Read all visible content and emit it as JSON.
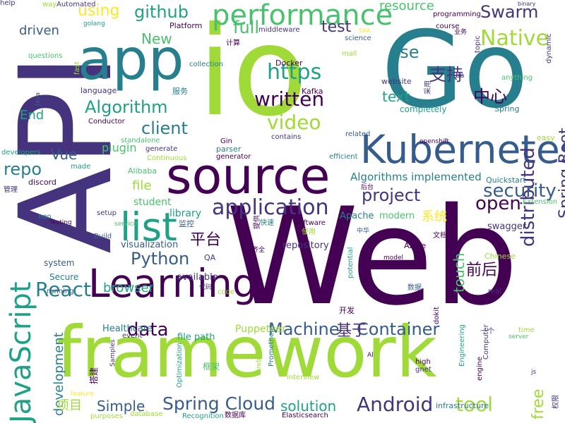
{
  "palette": {
    "dark_purple": "#440154",
    "indigo": "#46337e",
    "blue": "#365c8d",
    "teal_blue": "#277f8e",
    "teal": "#1fa187",
    "green": "#4ac16d",
    "lime": "#a0da39",
    "yellow": "#fde725"
  },
  "words": [
    {
      "text": "Web",
      "color": "#440154"
    },
    {
      "text": "framework",
      "color": "#a0da39"
    },
    {
      "text": "API",
      "color": "#46337e"
    },
    {
      "text": "Go",
      "color": "#277f8e"
    },
    {
      "text": "io",
      "color": "#a0da39"
    },
    {
      "text": "source",
      "color": "#440154"
    },
    {
      "text": "app",
      "color": "#277f8e"
    },
    {
      "text": "Kubernetes",
      "color": "#365c8d"
    },
    {
      "text": "Learning",
      "color": "#440154"
    },
    {
      "text": "JavaScript",
      "color": "#1fa187"
    },
    {
      "text": "performance",
      "color": "#4ac16d"
    },
    {
      "text": "list",
      "color": "#1fa187"
    },
    {
      "text": "application",
      "color": "#46337e"
    },
    {
      "text": "Spring Cloud",
      "color": "#365c8d"
    },
    {
      "text": "Android",
      "color": "#46337e"
    },
    {
      "text": "Native",
      "color": "#a0da39"
    },
    {
      "text": "Swarm",
      "color": "#46337e"
    },
    {
      "text": "https",
      "color": "#1fa187"
    },
    {
      "text": "Algorithm",
      "color": "#1fa187"
    },
    {
      "text": "Machine",
      "color": "#365c8d"
    },
    {
      "text": "github",
      "color": "#1fa187"
    },
    {
      "text": "Python",
      "color": "#365c8d"
    },
    {
      "text": "React",
      "color": "#277f8e"
    },
    {
      "text": "written",
      "color": "#440154"
    },
    {
      "text": "video",
      "color": "#a0da39"
    },
    {
      "text": "distributed",
      "color": "#46337e"
    },
    {
      "text": "Spring Boot",
      "color": "#46337e"
    },
    {
      "text": "project",
      "color": "#46337e"
    },
    {
      "text": "security",
      "color": "#365c8d"
    },
    {
      "text": "data",
      "color": "#440154"
    },
    {
      "text": "Container",
      "color": "#365c8d"
    },
    {
      "text": "tool",
      "color": "#a0da39"
    },
    {
      "text": "open",
      "color": "#440154"
    },
    {
      "text": "client",
      "color": "#277f8e"
    },
    {
      "text": "repo",
      "color": "#277f8e"
    },
    {
      "text": "using",
      "color": "#fde725"
    },
    {
      "text": "full",
      "color": "#4ac16d"
    },
    {
      "text": "test",
      "color": "#46337e"
    },
    {
      "text": "use",
      "color": "#277f8e"
    },
    {
      "text": "支持",
      "color": "#46337e"
    },
    {
      "text": "中心",
      "color": "#440154"
    },
    {
      "text": "text",
      "color": "#1fa187"
    },
    {
      "text": "Simple",
      "color": "#365c8d"
    },
    {
      "text": "solution",
      "color": "#1fa187"
    },
    {
      "text": "free",
      "color": "#a0da39"
    },
    {
      "text": "基于",
      "color": "#46337e"
    },
    {
      "text": "前后",
      "color": "#440154"
    },
    {
      "text": "平台",
      "color": "#440154"
    },
    {
      "text": "touch",
      "color": "#4ac16d"
    },
    {
      "text": "development",
      "color": "#277f8e"
    },
    {
      "text": "项目",
      "color": "#a0da39"
    },
    {
      "text": "resource",
      "color": "#4ac16d"
    },
    {
      "text": "driven",
      "color": "#365c8d"
    },
    {
      "text": "New",
      "color": "#4ac16d"
    },
    {
      "text": "End",
      "color": "#1fa187"
    },
    {
      "text": "Vue",
      "color": "#365c8d"
    },
    {
      "text": "file",
      "color": "#a0da39"
    },
    {
      "text": "browser",
      "color": "#1fa187"
    },
    {
      "text": "系统",
      "color": "#fde725"
    },
    {
      "text": "Algorithms implemented",
      "color": "#277f8e"
    },
    {
      "text": "plugin",
      "color": "#4ac16d"
    },
    {
      "text": "library",
      "color": "#1fa187"
    },
    {
      "text": "repository",
      "color": "#46337e"
    },
    {
      "text": "available",
      "color": "#46337e"
    },
    {
      "text": "swagger",
      "color": "#46337e"
    },
    {
      "text": "Apache",
      "color": "#277f8e"
    },
    {
      "text": "modern",
      "color": "#4ac16d"
    },
    {
      "text": "student",
      "color": "#4ac16d"
    },
    {
      "text": "visualization",
      "color": "#365c8d"
    },
    {
      "text": "Secure",
      "color": "#277f8e"
    },
    {
      "text": "system",
      "color": "#365c8d"
    },
    {
      "text": "Puppeteer",
      "color": "#a0da39"
    },
    {
      "text": "file path",
      "color": "#1fa187"
    },
    {
      "text": "Healthcare",
      "color": "#277f8e"
    },
    {
      "text": "Quickstart",
      "color": "#277f8e"
    },
    {
      "text": "Platform",
      "color": "#440154"
    },
    {
      "text": "golang",
      "color": "#1fa187"
    },
    {
      "text": "Automated",
      "color": "#46337e"
    },
    {
      "text": "programming",
      "color": "#440154"
    },
    {
      "text": "binary",
      "color": "#46337e"
    },
    {
      "text": "course",
      "color": "#440154"
    },
    {
      "text": "website",
      "color": "#46337e"
    },
    {
      "text": "anything",
      "color": "#4ac16d"
    },
    {
      "text": "Spring",
      "color": "#277f8e"
    },
    {
      "text": "采用",
      "color": "#46337e"
    },
    {
      "text": "completely",
      "color": "#1fa187"
    },
    {
      "text": "Kafka",
      "color": "#440154"
    },
    {
      "text": "Docker",
      "color": "#440154"
    },
    {
      "text": "collection",
      "color": "#277f8e"
    },
    {
      "text": "middleware",
      "color": "#46337e"
    },
    {
      "text": "science",
      "color": "#365c8d"
    },
    {
      "text": "mall",
      "color": "#a0da39"
    },
    {
      "text": "SAA",
      "color": "#fde725"
    },
    {
      "text": "questions",
      "color": "#4ac16d"
    },
    {
      "text": "fast",
      "color": "#a0da39"
    },
    {
      "text": "language",
      "color": "#46337e"
    },
    {
      "text": "服务",
      "color": "#277f8e"
    },
    {
      "text": "Conductor",
      "color": "#440154"
    },
    {
      "text": "standalone",
      "color": "#4ac16d"
    },
    {
      "text": "developers",
      "color": "#1fa187"
    },
    {
      "text": "made",
      "color": "#1fa187"
    },
    {
      "text": "discord",
      "color": "#440154"
    },
    {
      "text": "管理",
      "color": "#46337e"
    },
    {
      "text": "Alibaba",
      "color": "#4ac16d"
    },
    {
      "text": "generate",
      "color": "#46337e"
    },
    {
      "text": "Continuous",
      "color": "#a0da39"
    },
    {
      "text": "parser",
      "color": "#277f8e"
    },
    {
      "text": "generator",
      "color": "#440154"
    },
    {
      "text": "Gin",
      "color": "#440154"
    },
    {
      "text": "contains",
      "color": "#46337e"
    },
    {
      "text": "efficient",
      "color": "#277f8e"
    },
    {
      "text": "related",
      "color": "#365c8d"
    },
    {
      "text": "openshift",
      "color": "#440154"
    },
    {
      "text": "easy",
      "color": "#a0da39"
    },
    {
      "text": "dynamic",
      "color": "#46337e"
    },
    {
      "text": "topic",
      "color": "#46337e"
    },
    {
      "text": "业务",
      "color": "#440154"
    },
    {
      "text": "ba",
      "color": "#46337e"
    },
    {
      "text": "Java",
      "color": "#365c8d"
    },
    {
      "text": "Testing",
      "color": "#440154"
    },
    {
      "text": "setup",
      "color": "#46337e"
    },
    {
      "text": "non",
      "color": "#277f8e"
    },
    {
      "text": "service",
      "color": "#4ac16d"
    },
    {
      "text": "Build",
      "color": "#365c8d"
    },
    {
      "text": "监控",
      "color": "#365c8d"
    },
    {
      "text": "快速",
      "color": "#277f8e"
    },
    {
      "text": "使用",
      "color": "#a0da39"
    },
    {
      "text": "中华",
      "color": "#365c8d"
    },
    {
      "text": "software",
      "color": "#440154"
    },
    {
      "text": "文档",
      "color": "#440154"
    },
    {
      "text": "QA",
      "color": "#46337e"
    },
    {
      "text": "齐全",
      "color": "#440154"
    },
    {
      "text": "potential",
      "color": "#1fa187"
    },
    {
      "text": "model",
      "color": "#440154"
    },
    {
      "text": "Azure",
      "color": "#440154"
    },
    {
      "text": "Chinese",
      "color": "#a0da39"
    },
    {
      "text": "real",
      "color": "#46337e"
    },
    {
      "text": "数据",
      "color": "#365c8d"
    },
    {
      "text": "代码",
      "color": "#46337e"
    },
    {
      "text": "code",
      "color": "#a0da39"
    },
    {
      "text": "running",
      "color": "#365c8d"
    },
    {
      "text": "开发",
      "color": "#440154"
    },
    {
      "text": "dokit",
      "color": "#440154"
    },
    {
      "text": "event",
      "color": "#46337e"
    },
    {
      "text": "time",
      "color": "#a0da39"
    },
    {
      "text": "server",
      "color": "#4ac16d"
    },
    {
      "text": "一个",
      "color": "#46337e"
    },
    {
      "text": "high",
      "color": "#440154"
    },
    {
      "text": "gnet",
      "color": "#46337e"
    },
    {
      "text": "engine",
      "color": "#440154"
    },
    {
      "text": "Computer",
      "color": "#46337e"
    },
    {
      "text": "Engineering",
      "color": "#1fa187"
    },
    {
      "text": "js",
      "color": "#46337e"
    },
    {
      "text": "interview",
      "color": "#a0da39"
    },
    {
      "text": "Prometheus",
      "color": "#277f8e"
    },
    {
      "text": "Firebase",
      "color": "#a0da39"
    },
    {
      "text": "框架",
      "color": "#4ac16d"
    },
    {
      "text": "Optimization",
      "color": "#1fa187"
    },
    {
      "text": "搭建",
      "color": "#440154"
    },
    {
      "text": "Samples",
      "color": "#46337e"
    },
    {
      "text": "feature",
      "color": "#fde725"
    },
    {
      "text": "purposes",
      "color": "#a0da39"
    },
    {
      "text": "database",
      "color": "#a0da39"
    },
    {
      "text": "Recognition",
      "color": "#1fa187"
    },
    {
      "text": "数据库",
      "color": "#440154"
    },
    {
      "text": "Elasticsearch",
      "color": "#440154"
    },
    {
      "text": "infrastructure",
      "color": "#277f8e"
    },
    {
      "text": "权限",
      "color": "#46337e"
    },
    {
      "text": "计算",
      "color": "#440154"
    },
    {
      "text": "提供",
      "color": "#440154"
    },
    {
      "text": "后台",
      "color": "#440154"
    },
    {
      "text": "Extension",
      "color": "#4ac16d"
    },
    {
      "text": "way",
      "color": "#a0da39"
    },
    {
      "text": "Al",
      "color": "#440154"
    },
    {
      "text": "help",
      "color": "#46337e"
    }
  ]
}
